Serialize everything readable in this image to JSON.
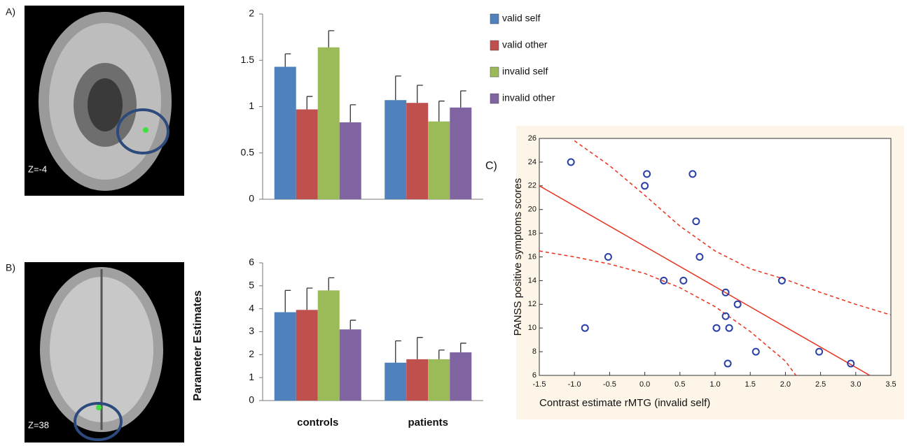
{
  "panel_labels": [
    "A)",
    "B)",
    "C)"
  ],
  "slice_labels": [
    "Z=-4",
    "Z=38"
  ],
  "chart_data": [
    {
      "type": "bar",
      "categories": [
        null,
        null
      ],
      "ylim": [
        0,
        2
      ],
      "yticks": [
        0,
        0.5,
        1,
        1.5,
        2
      ],
      "legend": "right",
      "series": [
        {
          "name": "valid self",
          "color": "#4f81bd",
          "values": [
            1.43,
            1.07
          ],
          "errors": [
            0.14,
            0.26
          ]
        },
        {
          "name": "valid other",
          "color": "#c0504d",
          "values": [
            0.97,
            1.04
          ],
          "errors": [
            0.14,
            0.19
          ]
        },
        {
          "name": "invalid self",
          "color": "#9bbb59",
          "values": [
            1.64,
            0.84
          ],
          "errors": [
            0.18,
            0.22
          ]
        },
        {
          "name": "invalid other",
          "color": "#8064a2",
          "values": [
            0.83,
            0.99
          ],
          "errors": [
            0.19,
            0.18
          ]
        }
      ]
    },
    {
      "type": "bar",
      "categories": [
        "controls",
        "patients"
      ],
      "y_label": "Parameter Estimates",
      "ylim": [
        0,
        6
      ],
      "yticks": [
        0,
        1,
        2,
        3,
        4,
        5,
        6
      ],
      "series": [
        {
          "color": "#4f81bd",
          "values": [
            3.85,
            1.65
          ],
          "errors": [
            0.95,
            0.95
          ]
        },
        {
          "color": "#c0504d",
          "values": [
            3.95,
            1.8
          ],
          "errors": [
            0.95,
            0.95
          ]
        },
        {
          "color": "#9bbb59",
          "values": [
            4.8,
            1.8
          ],
          "errors": [
            0.55,
            0.4
          ]
        },
        {
          "color": "#8064a2",
          "values": [
            3.1,
            2.1
          ],
          "errors": [
            0.4,
            0.4
          ]
        }
      ]
    },
    {
      "type": "scatter",
      "x_label": "Contrast estimate rMTG (invalid self)",
      "y_label": "PANSS positive symptoms scores",
      "xlim": [
        -1.5,
        3.5
      ],
      "ylim": [
        6,
        26
      ],
      "xticks": [
        {
          "value": -1.5,
          "label": "-1.5"
        },
        {
          "value": -1,
          "label": "-1.0"
        },
        {
          "value": -0.5,
          "label": "-0.5"
        },
        {
          "value": 0,
          "label": "0.0"
        },
        {
          "value": 0.5,
          "label": "0.5"
        },
        {
          "value": 1,
          "label": "1.0"
        },
        {
          "value": 1.5,
          "label": "1.5"
        },
        {
          "value": 2,
          "label": "2.0"
        },
        {
          "value": 2.5,
          "label": "2.5"
        },
        {
          "value": 3,
          "label": "3.0"
        },
        {
          "value": 3.5,
          "label": "3.5"
        }
      ],
      "yticks": [
        6,
        8,
        10,
        12,
        14,
        16,
        18,
        20,
        22,
        24,
        26
      ],
      "color": "#2a3fa8",
      "line_color": "#e8321e",
      "x": [
        -1.05,
        -0.85,
        -0.52,
        0.0,
        0.03,
        0.27,
        0.55,
        0.68,
        0.73,
        0.78,
        1.02,
        1.15,
        1.15,
        1.18,
        1.2,
        1.32,
        1.58,
        1.95,
        2.48,
        2.93
      ],
      "y": [
        24,
        10,
        16,
        22,
        23,
        14,
        14,
        23,
        19,
        16,
        10,
        13,
        11,
        7,
        10,
        12,
        8,
        14,
        8,
        7
      ],
      "fit": {
        "x": [
          -1.5,
          3.2
        ],
        "y": [
          22,
          6
        ]
      },
      "ci_upper": {
        "x": [
          -1.0,
          -0.5,
          0,
          0.5,
          1.0,
          1.5,
          2.0,
          2.5,
          3.0,
          3.5
        ],
        "y": [
          25.8,
          23.7,
          21.2,
          18.6,
          16.5,
          15,
          14.1,
          13,
          12,
          11.1
        ]
      },
      "ci_lower": {
        "x": [
          -1.5,
          -1.0,
          -0.5,
          0,
          0.5,
          1.0,
          1.5,
          2.0,
          2.15
        ],
        "y": [
          16.5,
          16,
          15.4,
          14.6,
          13.4,
          11.8,
          9.7,
          7.2,
          6
        ]
      }
    }
  ]
}
